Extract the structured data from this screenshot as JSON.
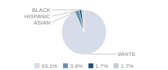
{
  "chart_data": {
    "type": "pie",
    "categories": [
      "WHITE",
      "ASIAN",
      "HISPANIC",
      "BLACK"
    ],
    "values": [
      93.1,
      3.4,
      1.7,
      1.7
    ],
    "value_labels": [
      "93.1%",
      "3.4%",
      "1.7%",
      "1.7%"
    ],
    "colors": [
      "#d6dde8",
      "#6b93b0",
      "#1f4e79",
      "#c5cdd8"
    ],
    "legend": "bottom"
  }
}
